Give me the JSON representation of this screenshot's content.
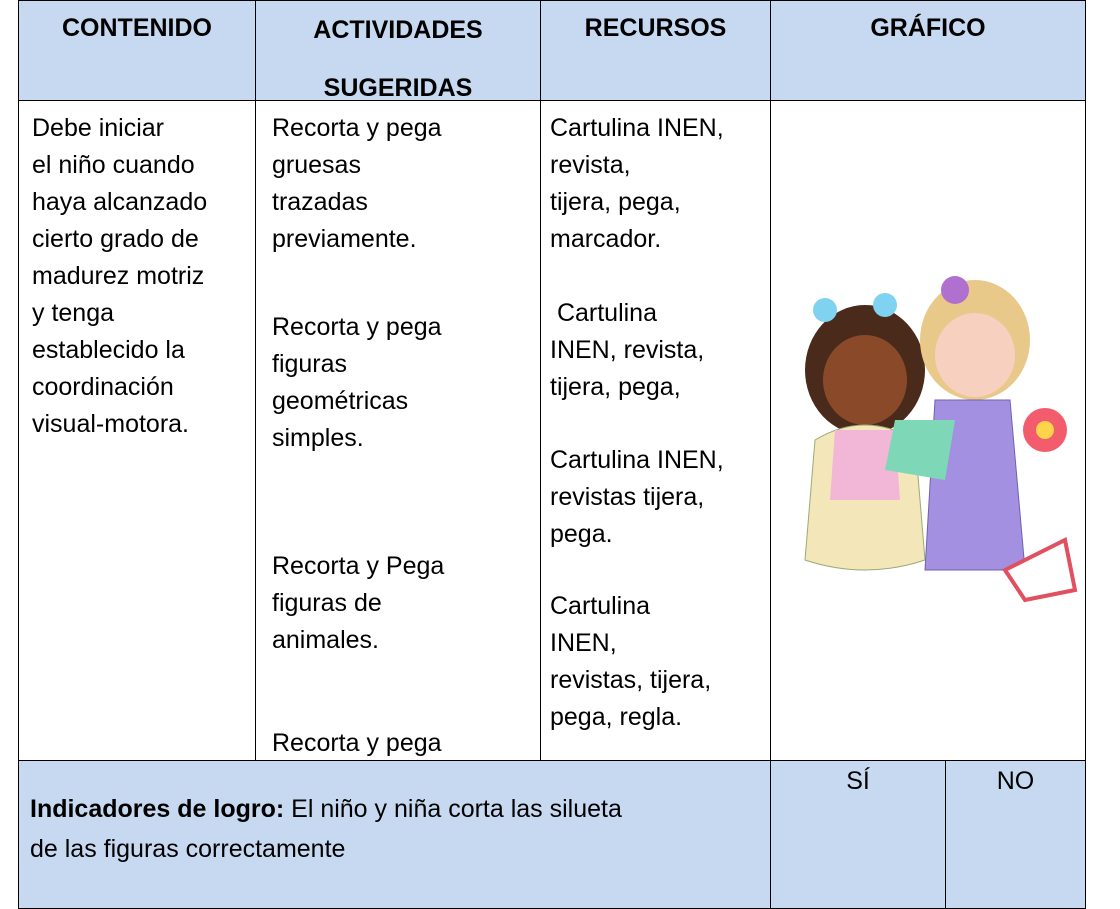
{
  "header": {
    "columns": [
      {
        "lines": [
          "CONTENIDO"
        ]
      },
      {
        "lines": [
          "ACTIVIDADES",
          "SUGERIDAS"
        ]
      },
      {
        "lines": [
          "RECURSOS"
        ]
      },
      {
        "lines": [
          "GRÁFICO"
        ]
      }
    ]
  },
  "body": {
    "contenido": [
      [
        "Debe iniciar",
        "el niño cuando",
        "haya alcanzado",
        "cierto grado de",
        "madurez motriz",
        "y tenga",
        "establecido la",
        "coordinación",
        "visual-motora."
      ]
    ],
    "actividades": [
      [
        "Recorta y pega",
        "gruesas",
        "trazadas",
        "previamente."
      ],
      [
        "Recorta y pega",
        "figuras",
        "geométricas",
        "simples."
      ],
      [
        "Recorta y Pega",
        "figuras de",
        "animales."
      ],
      [
        "Recorta y pega"
      ]
    ],
    "recursos": [
      [
        "Cartulina INEN,",
        "revista,",
        "tijera, pega,",
        "marcador."
      ],
      [
        " Cartulina",
        "INEN, revista,",
        "tijera, pega,"
      ],
      [
        "Cartulina INEN,",
        "revistas tijera,",
        "pega."
      ],
      [
        "Cartulina",
        "INEN,",
        "revistas, tijera,",
        "pega, regla."
      ]
    ]
  },
  "footer": {
    "label": "Indicadores de logro:",
    "lines": [
      " El niño y niña corta las silueta",
      "de las figuras correctamente"
    ],
    "yes": "SÍ",
    "no": "NO"
  }
}
